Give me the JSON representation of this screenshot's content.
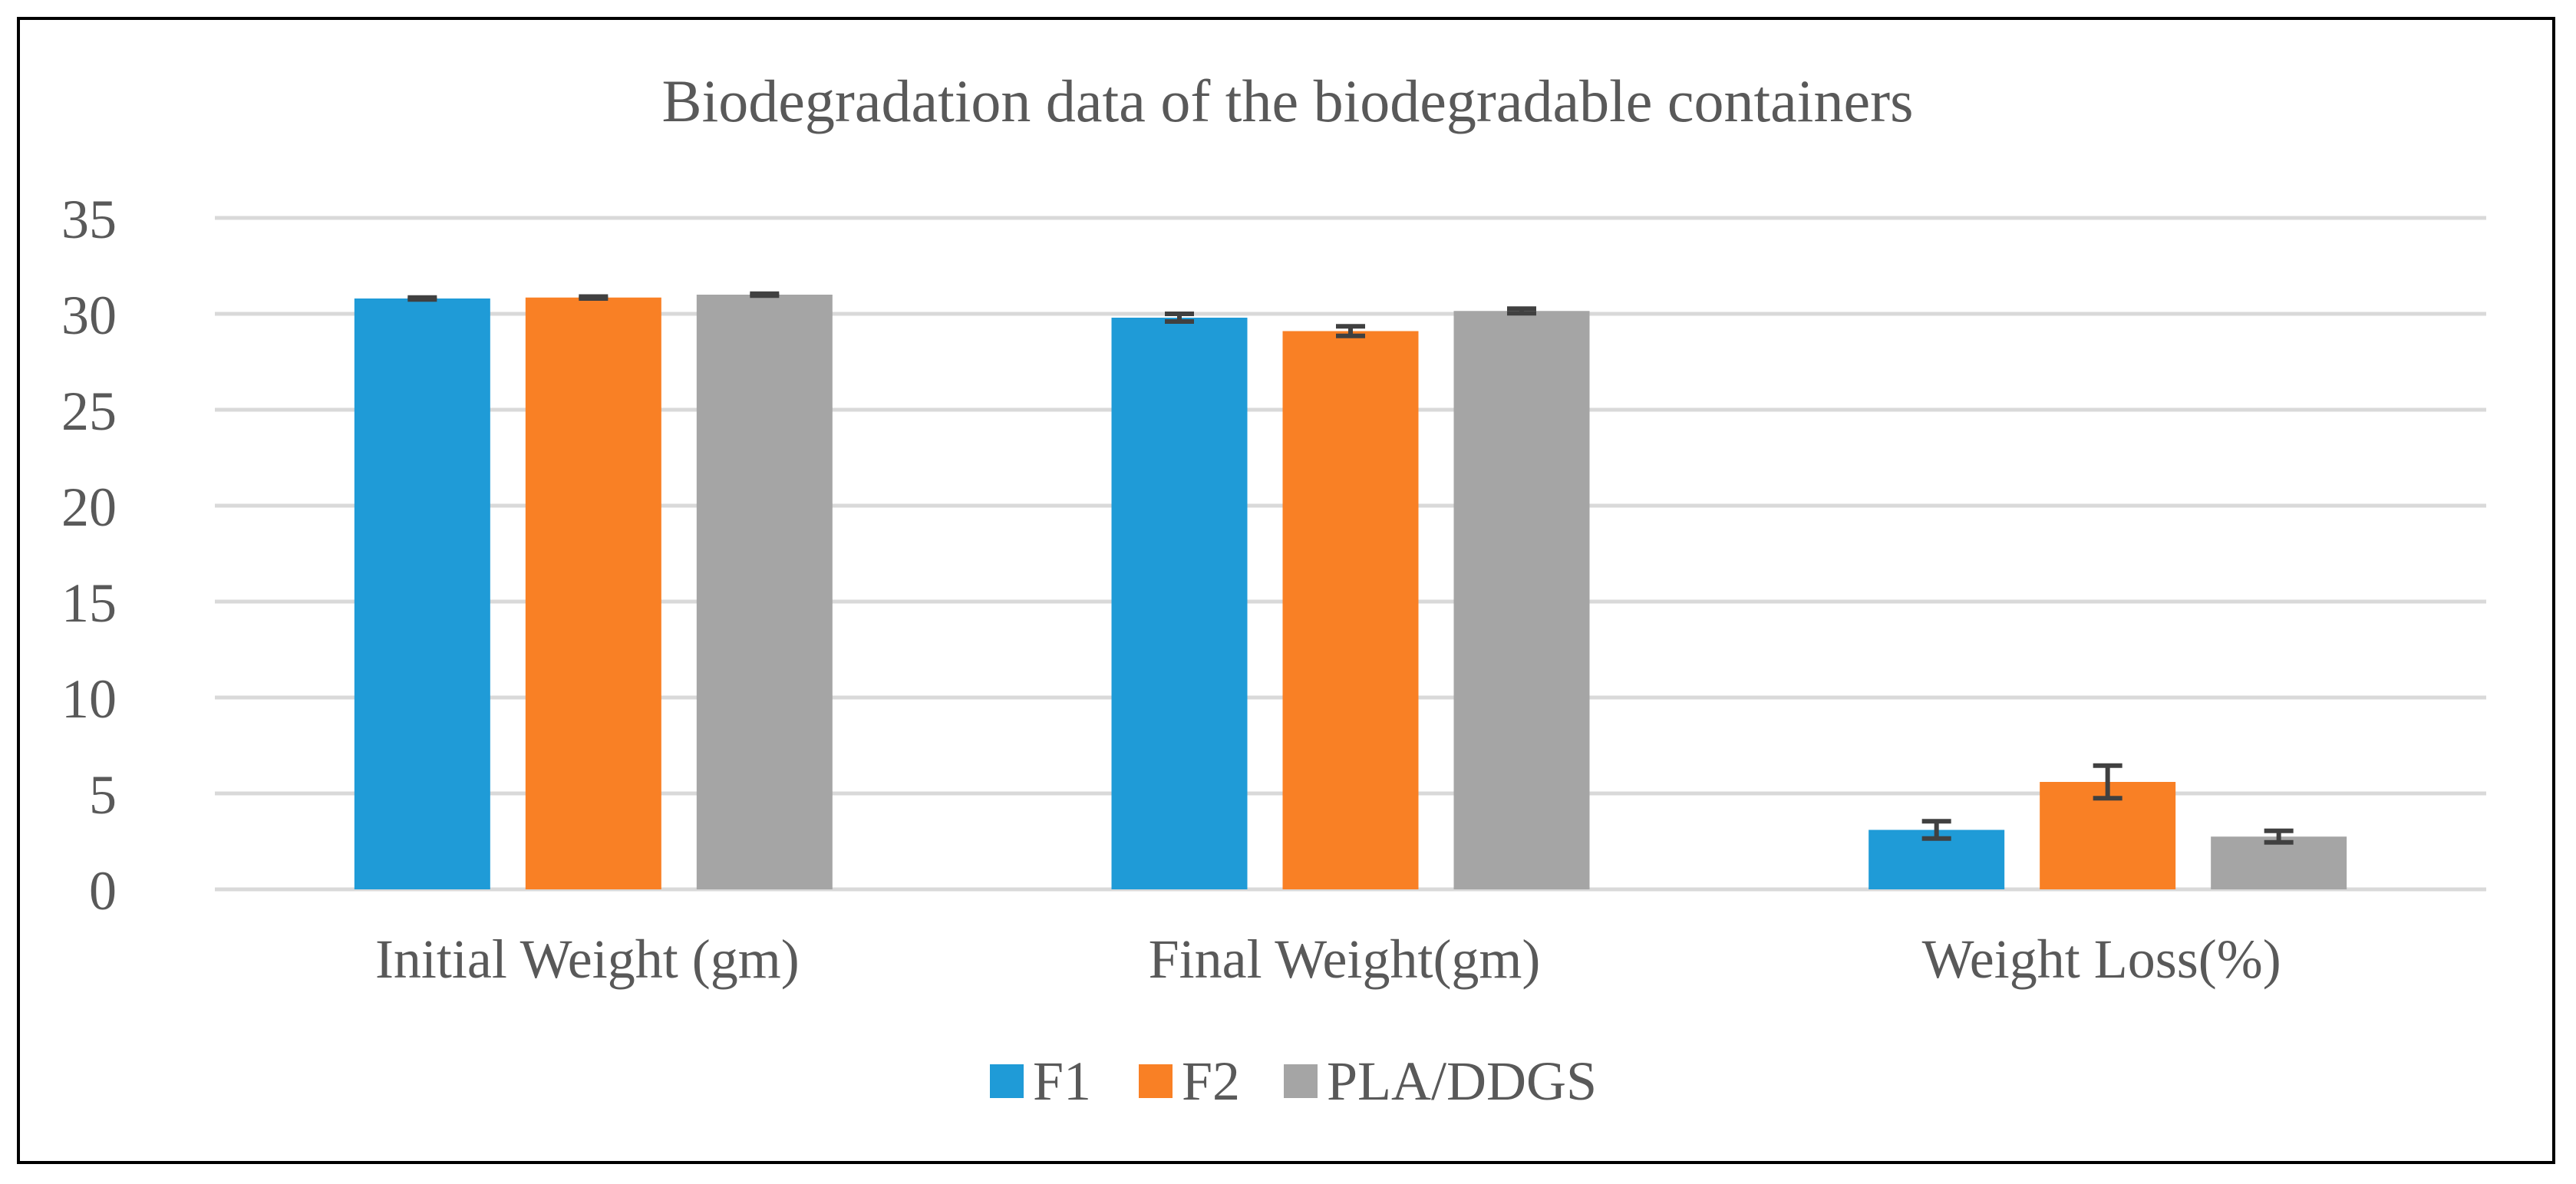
{
  "chart_data": {
    "type": "bar",
    "title": "Biodegradation data of the biodegradable containers",
    "xlabel": "",
    "ylabel": "",
    "ylim": [
      0,
      35
    ],
    "yticks": [
      0,
      5,
      10,
      15,
      20,
      25,
      30,
      35
    ],
    "grid": true,
    "legend_position": "bottom-center",
    "categories": [
      "Initial Weight (gm)",
      "Final Weight(gm)",
      "Weight Loss(%)"
    ],
    "series": [
      {
        "name": "F1",
        "color": "#1f9bd7",
        "values": [
          30.8,
          29.8,
          3.1
        ],
        "errors": [
          0.05,
          0.2,
          0.45
        ]
      },
      {
        "name": "F2",
        "color": "#f98025",
        "values": [
          30.85,
          29.1,
          5.6
        ],
        "errors": [
          0.05,
          0.25,
          0.85
        ]
      },
      {
        "name": "PLA/DDGS",
        "color": "#a5a5a5",
        "values": [
          31.0,
          30.15,
          2.75
        ],
        "errors": [
          0.05,
          0.12,
          0.3
        ]
      }
    ]
  }
}
